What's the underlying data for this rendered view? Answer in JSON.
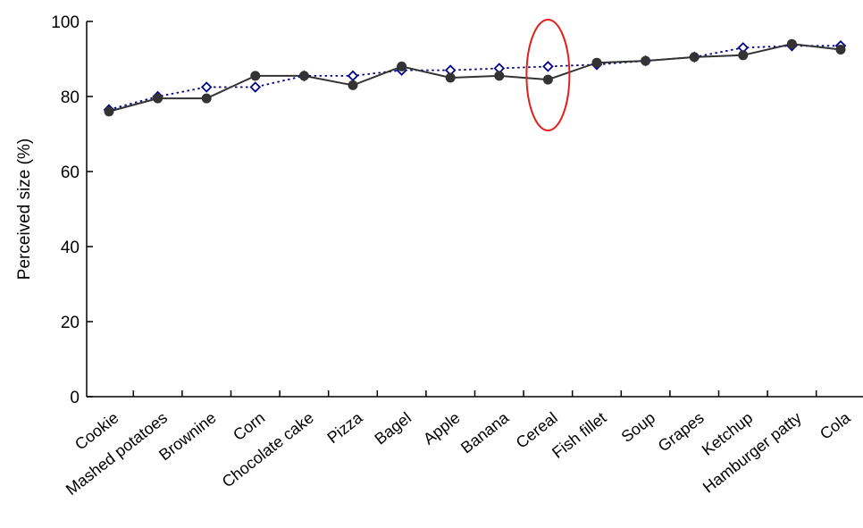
{
  "chart_data": {
    "type": "line",
    "title": "",
    "xlabel": "",
    "ylabel": "Perceived size (%)",
    "ylim": [
      0,
      100
    ],
    "yticks": [
      0,
      20,
      40,
      60,
      80,
      100
    ],
    "grid": false,
    "categories": [
      "Cookie",
      "Mashed potatoes",
      "Brownine",
      "Corn",
      "Chocolate cake",
      "Pizza",
      "Bagel",
      "Apple",
      "Banana",
      "Cereal",
      "Fish fillet",
      "Soup",
      "Grapes",
      "Ketchup",
      "Hamburger patty",
      "Cola"
    ],
    "series": [
      {
        "marker": "filled-circle",
        "line_style": "solid",
        "color": "#333333",
        "values": [
          76,
          79.5,
          79.5,
          85.5,
          85.5,
          83,
          88,
          85,
          85.5,
          84.5,
          89,
          89.5,
          90.5,
          91,
          94,
          92.5
        ]
      },
      {
        "marker": "open-diamond",
        "line_style": "dotted",
        "color": "#00008b",
        "values": [
          76.5,
          80,
          82.5,
          82.5,
          85.5,
          85.5,
          87,
          87,
          87.5,
          88,
          88.5,
          89.5,
          90.5,
          93,
          93.5,
          93.5
        ]
      }
    ],
    "annotations": [
      {
        "type": "ellipse",
        "target_category": "Cereal",
        "color": "#e0201c"
      }
    ]
  }
}
